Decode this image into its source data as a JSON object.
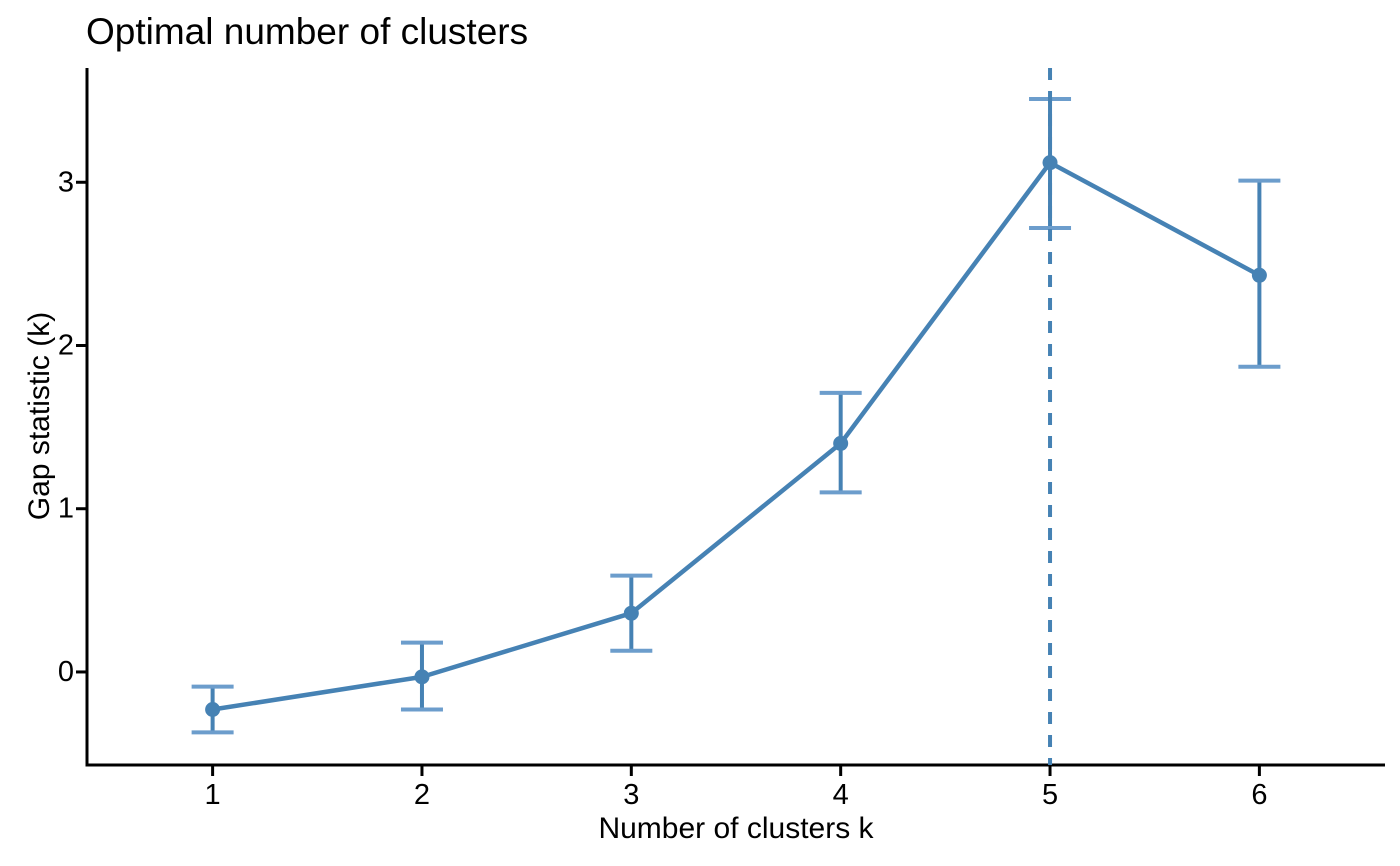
{
  "page": {
    "background": "#FFFFFF"
  },
  "chart_data": {
    "type": "line",
    "title": "Optimal number of clusters",
    "xlabel": "Number of clusters k",
    "ylabel": "Gap statistic (k)",
    "x": [
      1,
      2,
      3,
      4,
      5,
      6
    ],
    "x_tick_labels": [
      "1",
      "2",
      "3",
      "4",
      "5",
      "6"
    ],
    "y_tick_values": [
      0,
      1,
      2,
      3
    ],
    "y_tick_labels": [
      "0",
      "1",
      "2",
      "3"
    ],
    "xlim": [
      0.4,
      6.6
    ],
    "ylim": [
      -0.57,
      3.7
    ],
    "grid": false,
    "legend": "none",
    "series": [
      {
        "name": "Gap statistic",
        "values": [
          -0.23,
          -0.03,
          0.36,
          1.4,
          3.12,
          2.43
        ],
        "error_low": [
          -0.37,
          -0.23,
          0.13,
          1.1,
          2.72,
          1.87
        ],
        "error_high": [
          -0.09,
          0.18,
          0.59,
          1.71,
          3.51,
          3.01
        ]
      }
    ],
    "vline": {
      "x": 5,
      "style": "dashed"
    },
    "optimal_k": 5,
    "colors": {
      "line": "#4682B4",
      "point": "#4682B4",
      "errorbar": "#4682B4",
      "errorbar_cap": "#6C9DCC",
      "vline": "#4682B4",
      "axis": "#000000",
      "text": "#000000"
    }
  }
}
